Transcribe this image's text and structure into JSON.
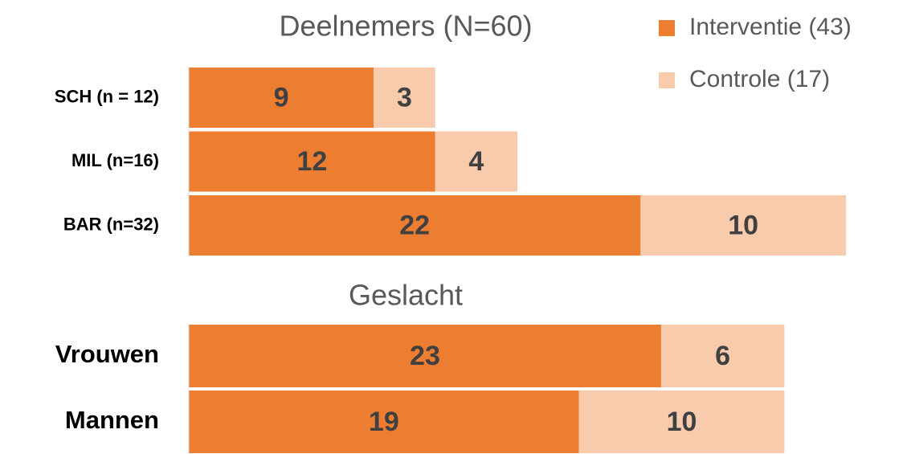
{
  "chart_data": [
    {
      "type": "stacked-bar-horizontal",
      "title": "Deelnemers (N=60)",
      "categories": [
        "SCH (n = 12)",
        "MIL (n=16)",
        "BAR (n=32)"
      ],
      "series": [
        {
          "name": "Interventie (43)",
          "color": "#ed7d31",
          "values": [
            9,
            12,
            22
          ]
        },
        {
          "name": "Controle (17)",
          "color": "#f8cbad",
          "values": [
            3,
            4,
            10
          ]
        }
      ],
      "xlim": [
        0,
        32
      ],
      "legend": "top-right"
    },
    {
      "type": "stacked-bar-horizontal",
      "title": "Geslacht",
      "categories": [
        "Vrouwen",
        "Mannen"
      ],
      "series": [
        {
          "color": "#ed7d31",
          "values": [
            23,
            19
          ]
        },
        {
          "color": "#f8cbad",
          "values": [
            6,
            10
          ]
        }
      ],
      "xlim": [
        0,
        32
      ]
    }
  ]
}
